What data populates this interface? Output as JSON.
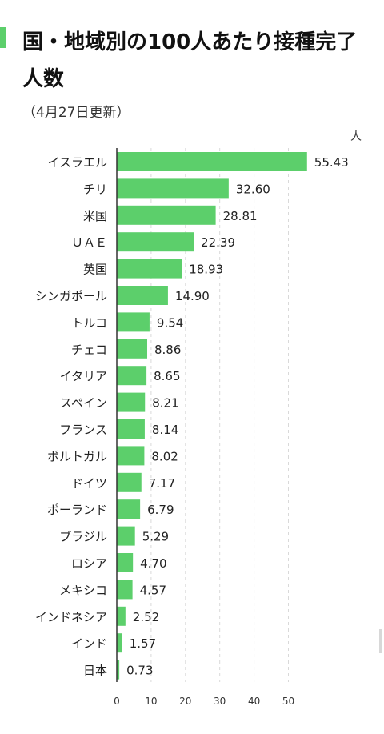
{
  "header": {
    "title": "国・地域別の100人あたり接種完了人数",
    "subtitle": "（4月27日更新）",
    "unit": "人"
  },
  "colors": {
    "accent": "#5ccf6b",
    "bar": "#5ccf6b",
    "grid": "#d9d9d9",
    "axis": "#333333"
  },
  "chart_data": {
    "type": "bar",
    "orientation": "horizontal",
    "title": "国・地域別の100人あたり接種完了人数",
    "subtitle": "（4月27日更新）",
    "xlabel": "人",
    "xlim": [
      0,
      55
    ],
    "xticks": [
      0,
      10,
      20,
      30,
      40,
      50
    ],
    "grid": true,
    "categories": [
      "イスラエル",
      "チリ",
      "米国",
      "ＵＡＥ",
      "英国",
      "シンガポール",
      "トルコ",
      "チェコ",
      "イタリア",
      "スペイン",
      "フランス",
      "ポルトガル",
      "ドイツ",
      "ポーランド",
      "ブラジル",
      "ロシア",
      "メキシコ",
      "インドネシア",
      "インド",
      "日本"
    ],
    "values": [
      55.43,
      32.6,
      28.81,
      22.39,
      18.93,
      14.9,
      9.54,
      8.86,
      8.65,
      8.21,
      8.14,
      8.02,
      7.17,
      6.79,
      5.29,
      4.7,
      4.57,
      2.52,
      1.57,
      0.73
    ],
    "value_labels": [
      "55.43",
      "32.60",
      "28.81",
      "22.39",
      "18.93",
      "14.90",
      "9.54",
      "8.86",
      "8.65",
      "8.21",
      "8.14",
      "8.02",
      "7.17",
      "6.79",
      "5.29",
      "4.70",
      "4.57",
      "2.52",
      "1.57",
      "0.73"
    ]
  }
}
